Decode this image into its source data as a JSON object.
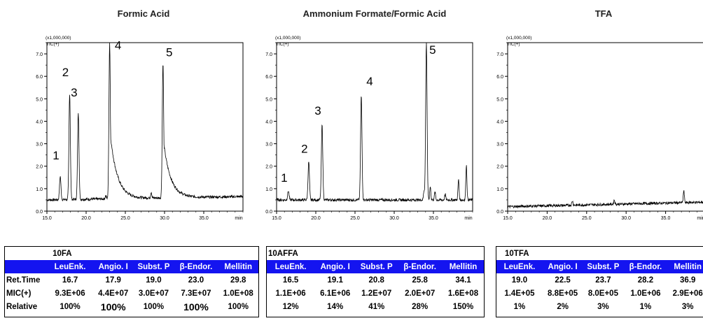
{
  "chart_data": [
    {
      "type": "line",
      "title": "Formic Acid",
      "scale_label": "(x1,000,000)",
      "trace_label": "TIC(+)",
      "xlabel": "min",
      "xlim": [
        15.0,
        40.0
      ],
      "ylim": [
        0.0,
        7.5
      ],
      "x_ticks": [
        "15.0",
        "20.0",
        "25.0",
        "30.0",
        "35.0"
      ],
      "y_ticks": [
        "0.0",
        "1.0",
        "2.0",
        "3.0",
        "4.0",
        "5.0",
        "6.0",
        "7.0"
      ],
      "baseline": {
        "start": 0.5,
        "end": 0.65
      },
      "peaks": [
        {
          "label": "1",
          "x": 16.7,
          "y": 1.55,
          "label_y": 2.3
        },
        {
          "label": "2",
          "x": 17.9,
          "y": 5.25,
          "label_y": 6.0
        },
        {
          "label": "3",
          "x": 19.0,
          "y": 4.4,
          "label_y": 5.1
        },
        {
          "label": "4",
          "x": 23.0,
          "y": 7.5,
          "label_y": 7.2
        },
        {
          "label": "5",
          "x": 29.8,
          "y": 6.6,
          "label_y": 6.9
        }
      ],
      "minor_peaks": [
        [
          22.5,
          0.7
        ],
        [
          28.3,
          0.85
        ]
      ]
    },
    {
      "type": "line",
      "title": "Ammonium Formate/Formic Acid",
      "scale_label": "(x1,000,000)",
      "trace_label": "TIC(+)",
      "xlabel": "min",
      "xlim": [
        15.0,
        40.0
      ],
      "ylim": [
        0.0,
        7.5
      ],
      "x_ticks": [
        "15.0",
        "20.0",
        "25.0",
        "30.0",
        "35.0"
      ],
      "y_ticks": [
        "0.0",
        "1.0",
        "2.0",
        "3.0",
        "4.0",
        "5.0",
        "6.0",
        "7.0"
      ],
      "baseline": {
        "start": 0.5,
        "end": 0.5
      },
      "peaks": [
        {
          "label": "1",
          "x": 16.5,
          "y": 0.9,
          "label_y": 1.3
        },
        {
          "label": "2",
          "x": 19.1,
          "y": 2.2,
          "label_y": 2.6
        },
        {
          "label": "3",
          "x": 20.8,
          "y": 3.85,
          "label_y": 4.3
        },
        {
          "label": "4",
          "x": 25.8,
          "y": 5.15,
          "label_y": 5.6
        },
        {
          "label": "5",
          "x": 34.1,
          "y": 7.5,
          "label_y": 7.0
        }
      ],
      "minor_peaks": [
        [
          33.8,
          0.9
        ],
        [
          34.6,
          1.1
        ],
        [
          35.2,
          0.85
        ],
        [
          36.5,
          0.75
        ],
        [
          38.2,
          1.4
        ],
        [
          39.2,
          2.05
        ]
      ]
    },
    {
      "type": "line",
      "title": "TFA",
      "scale_label": "(x1,000,000)",
      "trace_label": "TIC(+)",
      "xlabel": "min",
      "xlim": [
        15.0,
        40.0
      ],
      "ylim": [
        0.0,
        7.5
      ],
      "x_ticks": [
        "15.0",
        "20.0",
        "25.0",
        "30.0",
        "35.0"
      ],
      "y_ticks": [
        "0.0",
        "1.0",
        "2.0",
        "3.0",
        "4.0",
        "5.0",
        "6.0",
        "7.0"
      ],
      "baseline": {
        "start": 0.2,
        "end": 0.4
      },
      "peaks": [],
      "minor_peaks": [
        [
          37.3,
          0.9
        ],
        [
          28.5,
          0.5
        ],
        [
          23.2,
          0.45
        ]
      ]
    }
  ],
  "tables": [
    {
      "sample": "10FA",
      "headers": [
        "LeuEnk.",
        "Angio. I",
        "Subst. P",
        "β-Endor.",
        "Mellitin"
      ],
      "rows": [
        {
          "label": "Ret.Time",
          "values": [
            "16.7",
            "17.9",
            "19.0",
            "23.0",
            "29.8"
          ]
        },
        {
          "label": "MIC(+)",
          "values": [
            "9.3E+06",
            "4.4E+07",
            "3.0E+07",
            "7.3E+07",
            "1.0E+08"
          ]
        },
        {
          "label": "Relative",
          "values": [
            "100%",
            "100%",
            "100%",
            "100%",
            "100%"
          ]
        }
      ]
    },
    {
      "sample": "10AFFA",
      "headers": [
        "LeuEnk.",
        "Angio. I",
        "Subst. P",
        "β-Endor.",
        "Mellitin"
      ],
      "rows": [
        {
          "label": "",
          "values": [
            "16.5",
            "19.1",
            "20.8",
            "25.8",
            "34.1"
          ]
        },
        {
          "label": "",
          "values": [
            "1.1E+06",
            "6.1E+06",
            "1.2E+07",
            "2.0E+07",
            "1.6E+08"
          ]
        },
        {
          "label": "",
          "values": [
            "12%",
            "14%",
            "41%",
            "28%",
            "150%"
          ]
        }
      ]
    },
    {
      "sample": "10TFA",
      "headers": [
        "LeuEnk.",
        "Angio. I",
        "Subst. P",
        "β-Endor.",
        "Mellitin"
      ],
      "rows": [
        {
          "label": "",
          "values": [
            "19.0",
            "22.5",
            "23.7",
            "28.2",
            "36.9"
          ]
        },
        {
          "label": "",
          "values": [
            "1.4E+05",
            "8.8E+05",
            "8.0E+05",
            "1.0E+06",
            "2.9E+06"
          ]
        },
        {
          "label": "",
          "values": [
            "1%",
            "2%",
            "3%",
            "1%",
            "3%"
          ]
        }
      ]
    }
  ]
}
